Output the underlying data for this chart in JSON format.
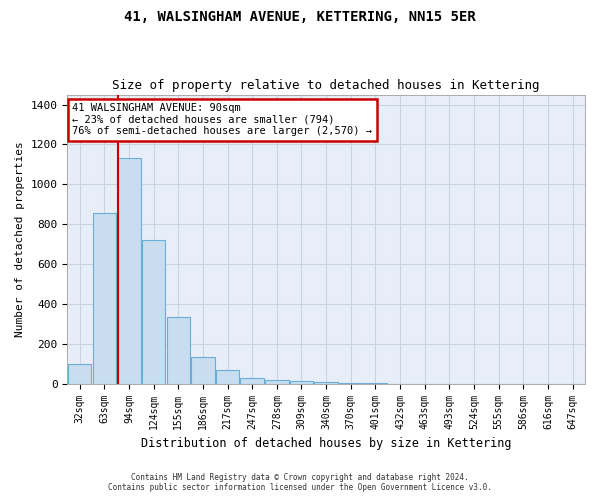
{
  "title": "41, WALSINGHAM AVENUE, KETTERING, NN15 5ER",
  "subtitle": "Size of property relative to detached houses in Kettering",
  "xlabel": "Distribution of detached houses by size in Kettering",
  "ylabel": "Number of detached properties",
  "bar_color": "#c8ddf0",
  "bar_edge_color": "#6aaed6",
  "grid_color": "#c8d4e4",
  "background_color": "#e8eef8",
  "categories": [
    "32sqm",
    "63sqm",
    "94sqm",
    "124sqm",
    "155sqm",
    "186sqm",
    "217sqm",
    "247sqm",
    "278sqm",
    "309sqm",
    "340sqm",
    "370sqm",
    "401sqm",
    "432sqm",
    "463sqm",
    "493sqm",
    "524sqm",
    "555sqm",
    "586sqm",
    "616sqm",
    "647sqm"
  ],
  "values": [
    100,
    855,
    1130,
    720,
    335,
    135,
    70,
    30,
    20,
    15,
    10,
    5,
    5,
    0,
    0,
    0,
    0,
    0,
    0,
    0,
    0
  ],
  "vline_x_index": 2,
  "vline_color": "#cc0000",
  "ylim": [
    0,
    1450
  ],
  "yticks": [
    0,
    200,
    400,
    600,
    800,
    1000,
    1200,
    1400
  ],
  "annotation_text": "41 WALSINGHAM AVENUE: 90sqm\n← 23% of detached houses are smaller (794)\n76% of semi-detached houses are larger (2,570) →",
  "annotation_box_color": "#ffffff",
  "annotation_box_edge": "#cc0000",
  "footer1": "Contains HM Land Registry data © Crown copyright and database right 2024.",
  "footer2": "Contains public sector information licensed under the Open Government Licence v3.0."
}
